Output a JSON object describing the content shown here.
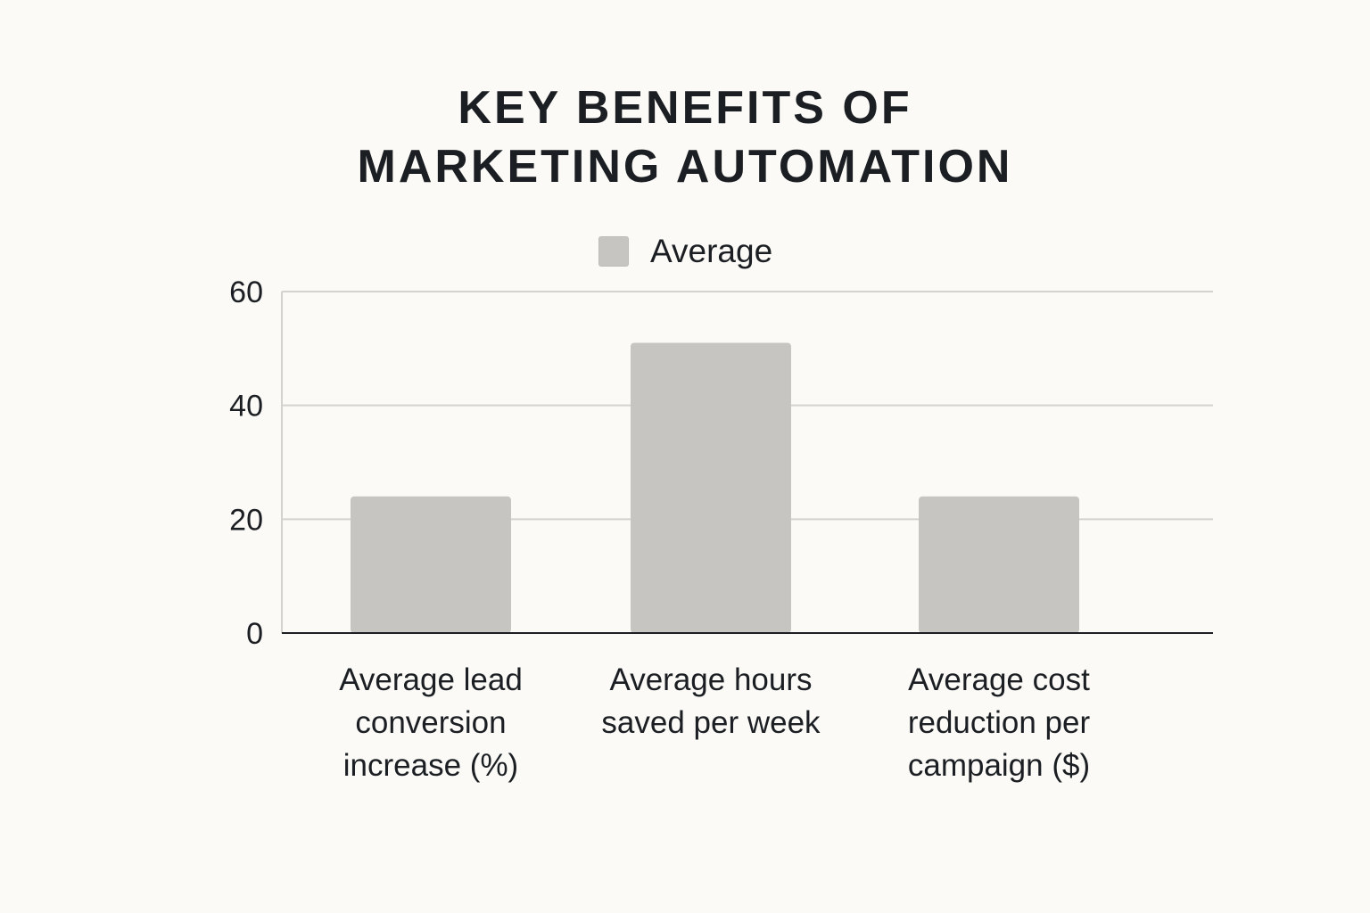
{
  "chart_data": {
    "type": "bar",
    "title_lines": [
      "KEY BENEFITS OF",
      "MARKETING AUTOMATION"
    ],
    "legend": "Average",
    "categories": [
      [
        "Average lead",
        "conversion",
        "increase (%)"
      ],
      [
        "Average hours",
        "saved per week"
      ],
      [
        "Average cost",
        "reduction per",
        "campaign ($)"
      ]
    ],
    "series": [
      {
        "name": "Average",
        "values": [
          24,
          51,
          24
        ]
      }
    ],
    "ylim": [
      0,
      60
    ],
    "yticks": [
      0,
      20,
      40,
      60
    ],
    "grid": true,
    "legend_position": "top-center",
    "colors": {
      "bar": "#c6c5c1",
      "grid": "#d3d2ce",
      "axis": "#1b1e22",
      "background": "#fbfaf6"
    }
  }
}
